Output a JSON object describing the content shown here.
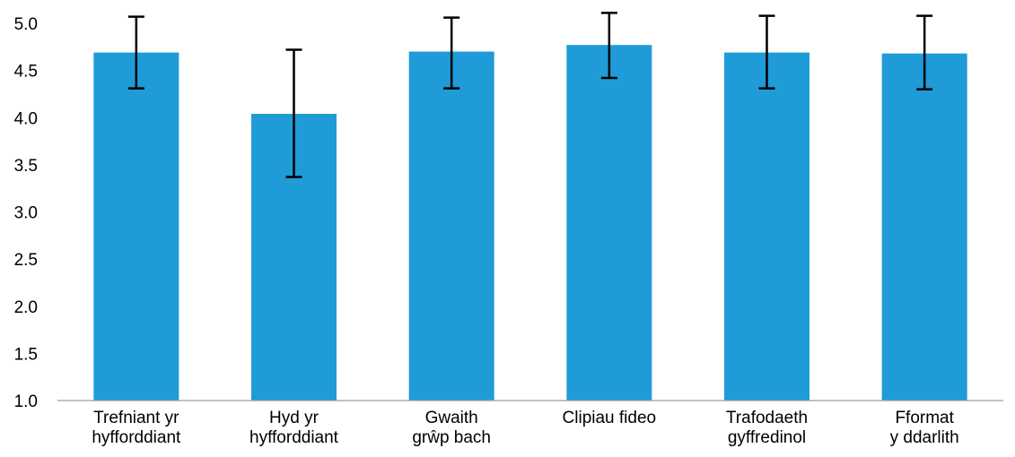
{
  "chart_data": {
    "type": "bar",
    "categories": [
      [
        "Trefniant yr",
        "hyfforddiant"
      ],
      [
        "Hyd yr",
        "hyfforddiant"
      ],
      [
        "Gwaith",
        "grŵp bach"
      ],
      [
        "Clipiau fideo"
      ],
      [
        "Trafodaeth",
        "gyffredinol"
      ],
      [
        "Fformat",
        "y ddarlith"
      ]
    ],
    "values": [
      4.69,
      4.04,
      4.7,
      4.77,
      4.69,
      4.68
    ],
    "error_low": [
      4.31,
      3.37,
      4.31,
      4.42,
      4.31,
      4.3
    ],
    "error_high": [
      5.07,
      4.72,
      5.06,
      5.11,
      5.08,
      5.08
    ],
    "title": "",
    "xlabel": "",
    "ylabel": "",
    "ylim": [
      1.0,
      5.0
    ],
    "yticks": [
      "1.0",
      "1.5",
      "2.0",
      "2.5",
      "3.0",
      "3.5",
      "4.0",
      "4.5",
      "5.0"
    ],
    "grid": false,
    "legend": "none",
    "colors": {
      "bar": "#1f9bd7",
      "error_bar": "#000000",
      "axis": "#9e9e9e"
    }
  }
}
